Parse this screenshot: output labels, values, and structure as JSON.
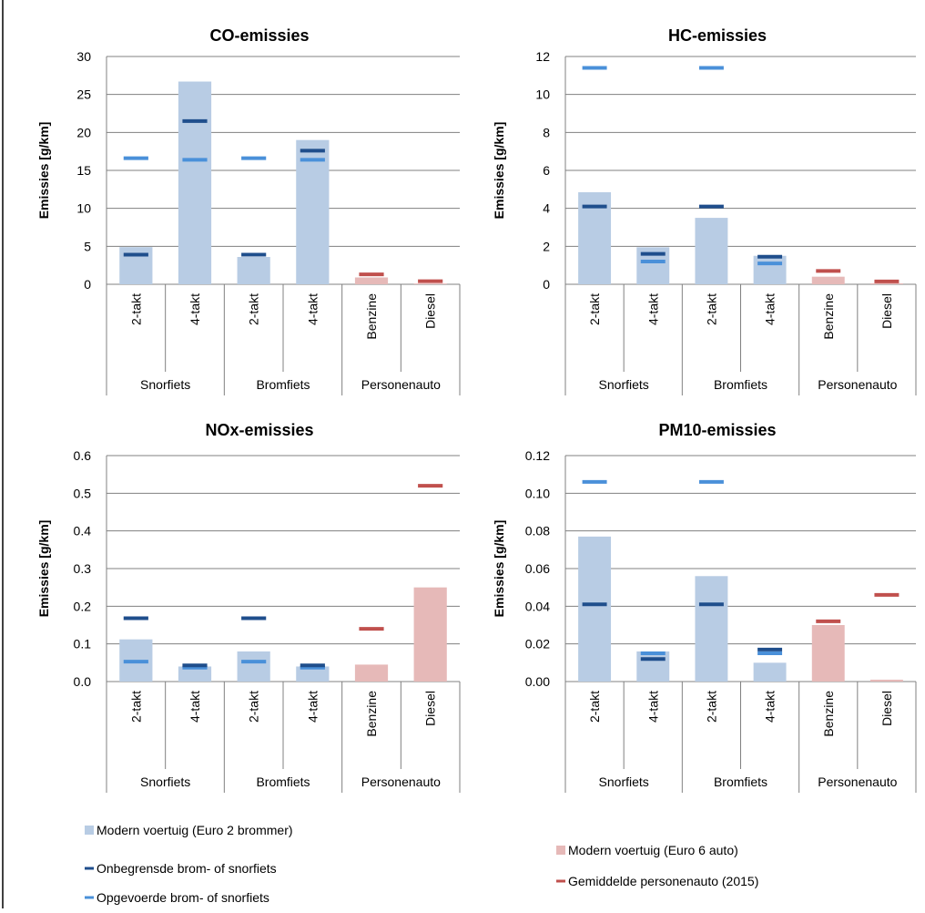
{
  "colors": {
    "modern_brommer": "#B8CCE4",
    "onbegrensd": "#1F4E8C",
    "opgevoerd": "#4A90D9",
    "modern_auto": "#E6B9B8",
    "gemiddeld_auto": "#C0504D",
    "axis": "#808080",
    "grid": "#808080"
  },
  "chart_data": [
    {
      "type": "bar",
      "title": "CO-emissies",
      "ylabel": "Emissies  [g/km]",
      "ylim": [
        0,
        30
      ],
      "yticks": [
        "0",
        "5",
        "10",
        "15",
        "20",
        "25",
        "30"
      ],
      "ytick_values": [
        0,
        5,
        10,
        15,
        20,
        25,
        30
      ],
      "categories": [
        "2-takt",
        "4-takt",
        "2-takt",
        "4-takt",
        "Benzine",
        "Diesel"
      ],
      "groups": [
        "Snorfiets",
        "Bromfiets",
        "Personenauto"
      ],
      "bars": [
        4.9,
        26.7,
        3.6,
        19.0,
        0.9,
        0.1
      ],
      "bar_types": [
        "modern_brommer",
        "modern_brommer",
        "modern_brommer",
        "modern_brommer",
        "modern_auto",
        "modern_auto"
      ],
      "markers": {
        "onbegrensd": [
          3.9,
          21.5,
          3.9,
          17.6,
          null,
          null
        ],
        "opgevoerd": [
          16.6,
          16.4,
          16.6,
          16.4,
          null,
          null
        ],
        "gemiddeld_auto": [
          null,
          null,
          null,
          null,
          1.3,
          0.4
        ]
      },
      "grid": true
    },
    {
      "type": "bar",
      "title": "HC-emissies",
      "ylabel": "Emissies  [g/km]",
      "ylim": [
        0,
        12
      ],
      "yticks": [
        "0",
        "2",
        "4",
        "6",
        "8",
        "10",
        "12"
      ],
      "ytick_values": [
        0,
        2,
        4,
        6,
        8,
        10,
        12
      ],
      "categories": [
        "2-takt",
        "4-takt",
        "2-takt",
        "4-takt",
        "Benzine",
        "Diesel"
      ],
      "groups": [
        "Snorfiets",
        "Bromfiets",
        "Personenauto"
      ],
      "bars": [
        4.85,
        1.95,
        3.5,
        1.5,
        0.4,
        0.05
      ],
      "bar_types": [
        "modern_brommer",
        "modern_brommer",
        "modern_brommer",
        "modern_brommer",
        "modern_auto",
        "modern_auto"
      ],
      "markers": {
        "onbegrensd": [
          4.1,
          1.6,
          4.1,
          1.45,
          null,
          null
        ],
        "opgevoerd": [
          11.4,
          1.2,
          11.4,
          1.1,
          null,
          null
        ],
        "gemiddeld_auto": [
          null,
          null,
          null,
          null,
          0.7,
          0.15
        ]
      },
      "grid": true
    },
    {
      "type": "bar",
      "title": "NOx-emissies",
      "ylabel": "Emissies  [g/km]",
      "ylim": [
        0,
        0.6
      ],
      "yticks": [
        "0.0",
        "0.1",
        "0.2",
        "0.3",
        "0.4",
        "0.5",
        "0.6"
      ],
      "ytick_values": [
        0,
        0.1,
        0.2,
        0.3,
        0.4,
        0.5,
        0.6
      ],
      "categories": [
        "2-takt",
        "4-takt",
        "2-takt",
        "4-takt",
        "Benzine",
        "Diesel"
      ],
      "groups": [
        "Snorfiets",
        "Bromfiets",
        "Personenauto"
      ],
      "bars": [
        0.112,
        0.04,
        0.08,
        0.04,
        0.045,
        0.25
      ],
      "bar_types": [
        "modern_brommer",
        "modern_brommer",
        "modern_brommer",
        "modern_brommer",
        "modern_auto",
        "modern_auto"
      ],
      "markers": {
        "onbegrensd": [
          0.168,
          0.043,
          0.168,
          0.043,
          null,
          null
        ],
        "opgevoerd": [
          0.053,
          0.037,
          0.053,
          0.037,
          null,
          null
        ],
        "gemiddeld_auto": [
          null,
          null,
          null,
          null,
          0.14,
          0.52
        ]
      },
      "grid": true
    },
    {
      "type": "bar",
      "title": "PM10-emissies",
      "ylabel": "Emissies  [g/km]",
      "ylim": [
        0,
        0.12
      ],
      "yticks": [
        "0.00",
        "0.02",
        "0.04",
        "0.06",
        "0.08",
        "0.10",
        "0.12"
      ],
      "ytick_values": [
        0,
        0.02,
        0.04,
        0.06,
        0.08,
        0.1,
        0.12
      ],
      "categories": [
        "2-takt",
        "4-takt",
        "2-takt",
        "4-takt",
        "Benzine",
        "Diesel"
      ],
      "groups": [
        "Snorfiets",
        "Bromfiets",
        "Personenauto"
      ],
      "bars": [
        0.077,
        0.016,
        0.056,
        0.01,
        0.03,
        0.001
      ],
      "bar_types": [
        "modern_brommer",
        "modern_brommer",
        "modern_brommer",
        "modern_brommer",
        "modern_auto",
        "modern_auto"
      ],
      "markers": {
        "onbegrensd": [
          0.041,
          0.012,
          0.041,
          0.017,
          null,
          null
        ],
        "opgevoerd": [
          0.106,
          0.015,
          0.106,
          0.015,
          null,
          null
        ],
        "gemiddeld_auto": [
          null,
          null,
          null,
          null,
          0.032,
          0.046
        ]
      },
      "grid": true
    }
  ],
  "legend": {
    "items": [
      {
        "key": "modern_brommer",
        "label": "Modern voertuig (Euro 2 brommer)",
        "kind": "box"
      },
      {
        "key": "onbegrensd",
        "label": "Onbegrensde brom- of snorfiets",
        "kind": "dash"
      },
      {
        "key": "opgevoerd",
        "label": "Opgevoerde brom- of snorfiets",
        "kind": "dash"
      },
      {
        "key": "modern_auto",
        "label": "Modern voertuig (Euro 6 auto)",
        "kind": "box"
      },
      {
        "key": "gemiddeld_auto",
        "label": "Gemiddelde personenauto (2015)",
        "kind": "dash"
      }
    ]
  }
}
